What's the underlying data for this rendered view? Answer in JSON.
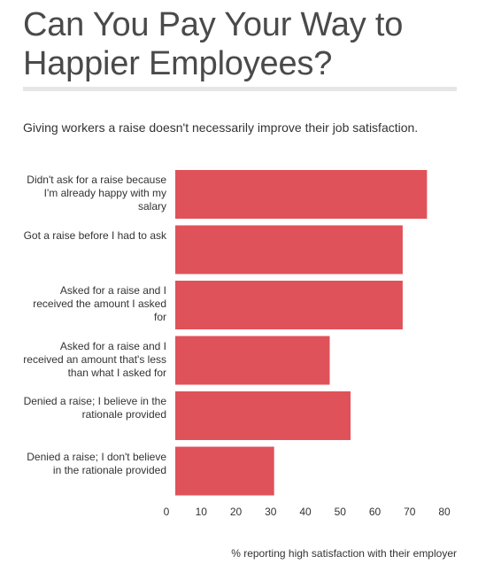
{
  "title": "Can You Pay Your Way to Happier Employees?",
  "subtitle": "Giving workers a raise doesn't necessarily improve their job satisfaction.",
  "chart_data": {
    "type": "bar",
    "orientation": "horizontal",
    "categories": [
      "Didn't ask for a raise because I'm already happy with my salary",
      "Got a raise before I had to ask",
      "Asked for a raise and I received the amount I asked for",
      "Asked for a raise and I received an amount that's less than what I asked for",
      "Denied a raise; I believe in the rationale provided",
      "Denied a raise; I don't believe in the rationale provided"
    ],
    "values": [
      75,
      68,
      68,
      47,
      53,
      31
    ],
    "xlabel": "% reporting high satisfaction with their employer",
    "xlim": [
      0,
      80
    ],
    "ticks": [
      "0",
      "10",
      "20",
      "30",
      "40",
      "50",
      "60",
      "70",
      "80"
    ],
    "bar_color": "#e05259",
    "grid": false
  }
}
